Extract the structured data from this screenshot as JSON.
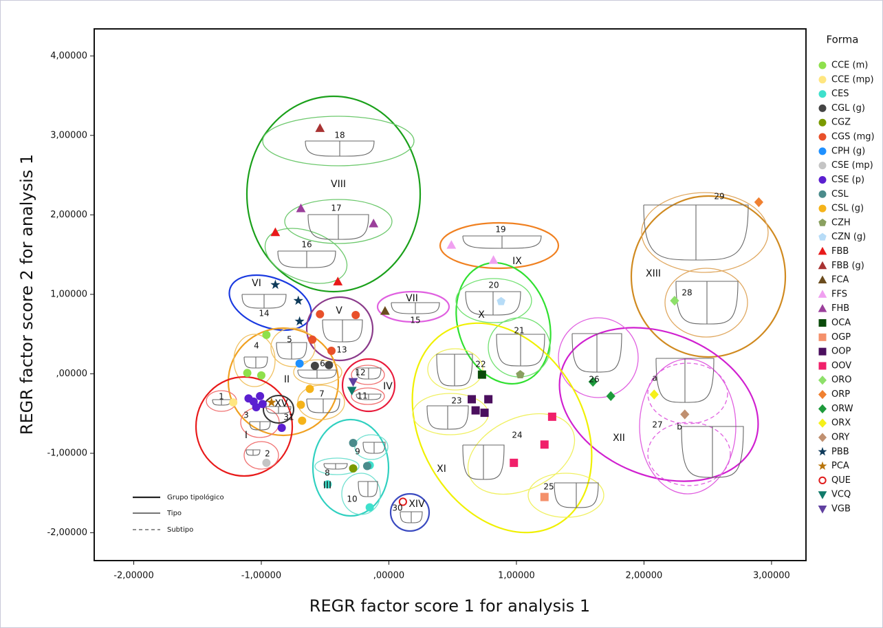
{
  "chart_data": {
    "type": "scatter",
    "x_label": "REGR factor score 1 for analysis 1",
    "y_label": "REGR factor score 2 for analysis 1",
    "legend_title": "Forma",
    "legend_position": "right",
    "grid": false,
    "xlim": [
      -2.31,
      3.27
    ],
    "ylim": [
      -2.35,
      4.34
    ],
    "xticks": [
      {
        "value": -2,
        "label": "-2,00000"
      },
      {
        "value": -1,
        "label": "-1,00000"
      },
      {
        "value": 0,
        "label": ",00000"
      },
      {
        "value": 1,
        "label": "1,00000"
      },
      {
        "value": 2,
        "label": "2,00000"
      },
      {
        "value": 3,
        "label": "3,00000"
      }
    ],
    "yticks": [
      {
        "value": -2,
        "label": "-2,00000"
      },
      {
        "value": -1,
        "label": "-1,00000"
      },
      {
        "value": 0,
        "label": ",00000"
      },
      {
        "value": 1,
        "label": "1,00000"
      },
      {
        "value": 2,
        "label": "2,00000"
      },
      {
        "value": 3,
        "label": "3,00000"
      },
      {
        "value": 4,
        "label": "4,00000"
      }
    ],
    "series": [
      {
        "name": "CCE (m)",
        "color": "#8ee04c",
        "marker": "circle",
        "x": [
          -0.96,
          -1.11,
          -1.0
        ],
        "y": [
          0.49,
          0.01,
          -0.02
        ]
      },
      {
        "name": "CCE (mp)",
        "color": "#ffe680",
        "marker": "circle",
        "x": [
          -1.22
        ],
        "y": [
          -0.36
        ]
      },
      {
        "name": "CES",
        "color": "#3ee0cc",
        "marker": "circle",
        "x": [
          -0.48,
          -0.15,
          -0.15
        ],
        "y": [
          -1.39,
          -1.15,
          -1.68
        ]
      },
      {
        "name": "CGL (g)",
        "color": "#444444",
        "marker": "circle",
        "x": [
          -0.58,
          -0.47
        ],
        "y": [
          0.1,
          0.11
        ]
      },
      {
        "name": "CGZ",
        "color": "#7a9a00",
        "marker": "circle",
        "x": [
          -0.28
        ],
        "y": [
          -1.19
        ]
      },
      {
        "name": "CGS (mg)",
        "color": "#e8502a",
        "marker": "circle",
        "x": [
          -0.54,
          -0.26,
          -0.6,
          -0.45
        ],
        "y": [
          0.75,
          0.74,
          0.43,
          0.29
        ]
      },
      {
        "name": "CPH (g)",
        "color": "#1e90ff",
        "marker": "circle",
        "x": [
          -0.7
        ],
        "y": [
          0.13
        ]
      },
      {
        "name": "CSE (mp)",
        "color": "#c4c4c4",
        "marker": "circle",
        "x": [
          -0.96
        ],
        "y": [
          -1.12
        ]
      },
      {
        "name": "CSE (p)",
        "color": "#5b1fd0",
        "marker": "circle",
        "x": [
          -1.1,
          -1.01,
          -1.06,
          -1.04,
          -0.99,
          -0.84
        ],
        "y": [
          -0.31,
          -0.28,
          -0.35,
          -0.42,
          -0.38,
          -0.68
        ]
      },
      {
        "name": "CSL",
        "color": "#4a8b8b",
        "marker": "circle",
        "x": [
          -0.28,
          -0.17
        ],
        "y": [
          -0.87,
          -1.16
        ]
      },
      {
        "name": "CSL (g)",
        "color": "#f5b31a",
        "marker": "circle",
        "x": [
          -0.62,
          -0.69,
          -0.68
        ],
        "y": [
          -0.19,
          -0.39,
          -0.59
        ]
      },
      {
        "name": "CZH",
        "color": "#8aa060",
        "marker": "pentagon",
        "x": [
          1.03
        ],
        "y": [
          -0.01
        ]
      },
      {
        "name": "CZN (g)",
        "color": "#b7dcf7",
        "marker": "pentagon",
        "x": [
          0.88
        ],
        "y": [
          0.91
        ]
      },
      {
        "name": "FBB",
        "color": "#e81a1a",
        "marker": "triangle",
        "x": [
          -0.89,
          -0.4
        ],
        "y": [
          1.78,
          1.16
        ]
      },
      {
        "name": "FBB (g)",
        "color": "#a83232",
        "marker": "triangle",
        "x": [
          -0.54
        ],
        "y": [
          3.09
        ]
      },
      {
        "name": "FCA",
        "color": "#6b4c1e",
        "marker": "triangle",
        "x": [
          -0.03
        ],
        "y": [
          0.79
        ]
      },
      {
        "name": "FFS",
        "color": "#f0a0f0",
        "marker": "triangle",
        "x": [
          0.49,
          0.82
        ],
        "y": [
          1.62,
          1.43
        ]
      },
      {
        "name": "FHB",
        "color": "#9b3f9b",
        "marker": "triangle",
        "x": [
          -0.69,
          -0.12
        ],
        "y": [
          2.08,
          1.89
        ]
      },
      {
        "name": "OCA",
        "color": "#0a4a0a",
        "marker": "square",
        "x": [
          0.73
        ],
        "y": [
          -0.01
        ]
      },
      {
        "name": "OGP",
        "color": "#f4906a",
        "marker": "square",
        "x": [
          1.22
        ],
        "y": [
          -1.55
        ]
      },
      {
        "name": "OOP",
        "color": "#4b0f5e",
        "marker": "square",
        "x": [
          0.65,
          0.78,
          0.68,
          0.75
        ],
        "y": [
          -0.32,
          -0.32,
          -0.46,
          -0.49
        ]
      },
      {
        "name": "OOV",
        "color": "#f0206a",
        "marker": "square",
        "x": [
          1.28,
          1.22,
          0.98
        ],
        "y": [
          -0.54,
          -0.89,
          -1.12
        ]
      },
      {
        "name": "ORO",
        "color": "#8ee06a",
        "marker": "diamond",
        "x": [
          2.24
        ],
        "y": [
          0.92
        ]
      },
      {
        "name": "ORP",
        "color": "#f08030",
        "marker": "diamond",
        "x": [
          2.9
        ],
        "y": [
          2.16
        ]
      },
      {
        "name": "ORW",
        "color": "#1e9a3c",
        "marker": "diamond",
        "x": [
          1.6,
          1.74
        ],
        "y": [
          -0.1,
          -0.28
        ]
      },
      {
        "name": "ORX",
        "color": "#f5f01a",
        "marker": "diamond",
        "x": [
          2.08
        ],
        "y": [
          -0.26
        ]
      },
      {
        "name": "ORY",
        "color": "#c09070",
        "marker": "diamond",
        "x": [
          2.32
        ],
        "y": [
          -0.51
        ]
      },
      {
        "name": "PBB",
        "color": "#0e3a5a",
        "marker": "star",
        "x": [
          -0.89,
          -0.71,
          -0.7
        ],
        "y": [
          1.12,
          0.92,
          0.66
        ]
      },
      {
        "name": "PCA",
        "color": "#b8740a",
        "marker": "star",
        "x": [
          -0.92
        ],
        "y": [
          -0.36
        ]
      },
      {
        "name": "QUE",
        "color": "#e01a1a",
        "marker": "open-circle",
        "x": [
          0.11
        ],
        "y": [
          -1.61
        ]
      },
      {
        "name": "VCQ",
        "color": "#107a6a",
        "marker": "triangle-down",
        "x": [
          -0.29
        ],
        "y": [
          -0.21
        ]
      },
      {
        "name": "VGB",
        "color": "#6040a0",
        "marker": "triangle-down",
        "x": [
          -0.28
        ],
        "y": [
          -0.1
        ]
      }
    ],
    "annotations": [
      "I",
      "II",
      "III",
      "IV",
      "V",
      "VI",
      "VII",
      "VIII",
      "IX",
      "X",
      "XI",
      "XII",
      "XIII",
      "XIV",
      "XV",
      "1",
      "2",
      "3",
      "4",
      "5",
      "6",
      "7",
      "8",
      "9",
      "10",
      "11",
      "12",
      "13",
      "14",
      "15",
      "16",
      "17",
      "18",
      "19",
      "20",
      "21",
      "22",
      "23",
      "24",
      "25",
      "26",
      "27",
      "28",
      "29",
      "30",
      "31",
      "a",
      "b"
    ],
    "line_legend": [
      "Grupo tipológico",
      "Tipo",
      "Subtipo"
    ]
  }
}
